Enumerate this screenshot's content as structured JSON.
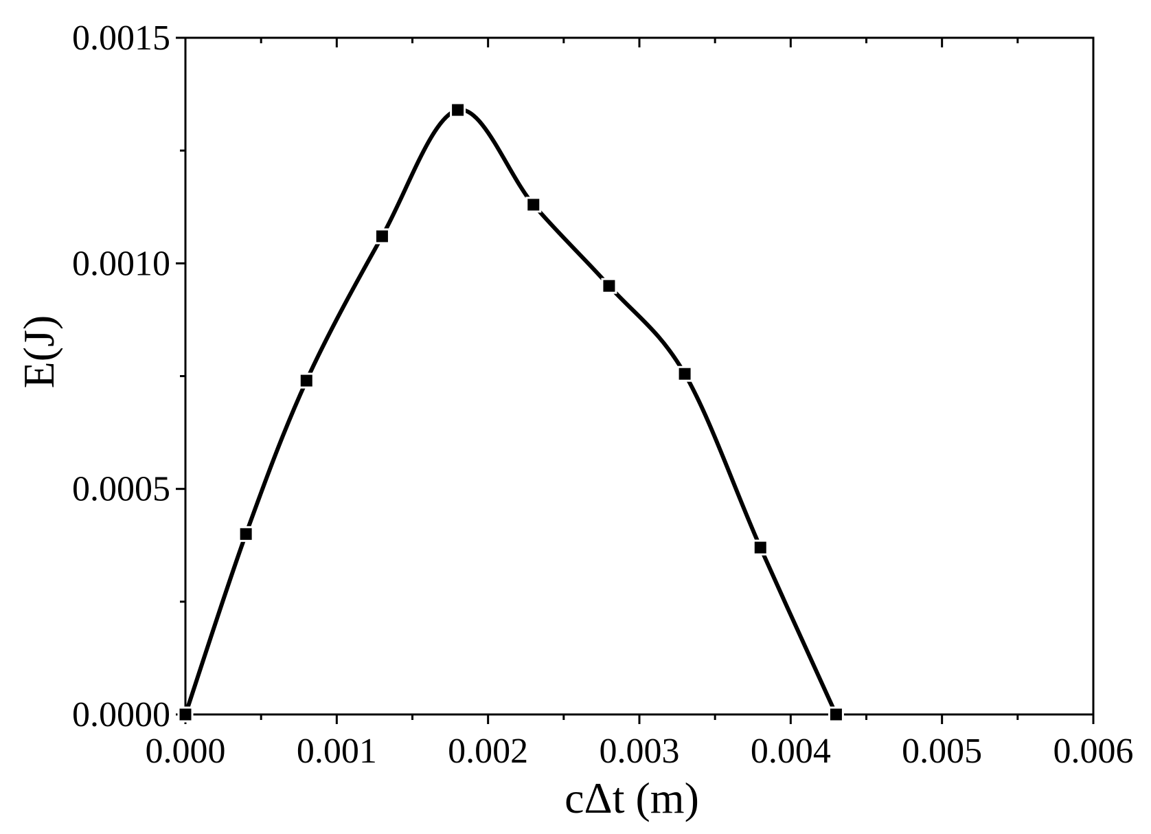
{
  "chart_data": {
    "type": "line",
    "title": "",
    "xlabel": "cΔt (m)",
    "ylabel": "E(J)",
    "xlim": [
      0.0,
      0.006
    ],
    "ylim": [
      0.0,
      0.0015
    ],
    "x_ticks": [
      "0.000",
      "0.001",
      "0.002",
      "0.003",
      "0.004",
      "0.005",
      "0.006"
    ],
    "y_ticks": [
      "0.0000",
      "0.0005",
      "0.0010",
      "0.0015"
    ],
    "grid": false,
    "legend": "none",
    "colors": {
      "line": "#000000",
      "marker": "#000000",
      "axis": "#000000"
    },
    "marker": "square",
    "series": [
      {
        "x": [
          0.0,
          0.0004,
          0.0008,
          0.0013,
          0.0018,
          0.0023,
          0.0028,
          0.0033,
          0.0038,
          0.0043
        ],
        "y": [
          0.0,
          0.0004,
          0.00074,
          0.00106,
          0.00134,
          0.00113,
          0.00095,
          0.000755,
          0.00037,
          0.0
        ]
      }
    ]
  }
}
